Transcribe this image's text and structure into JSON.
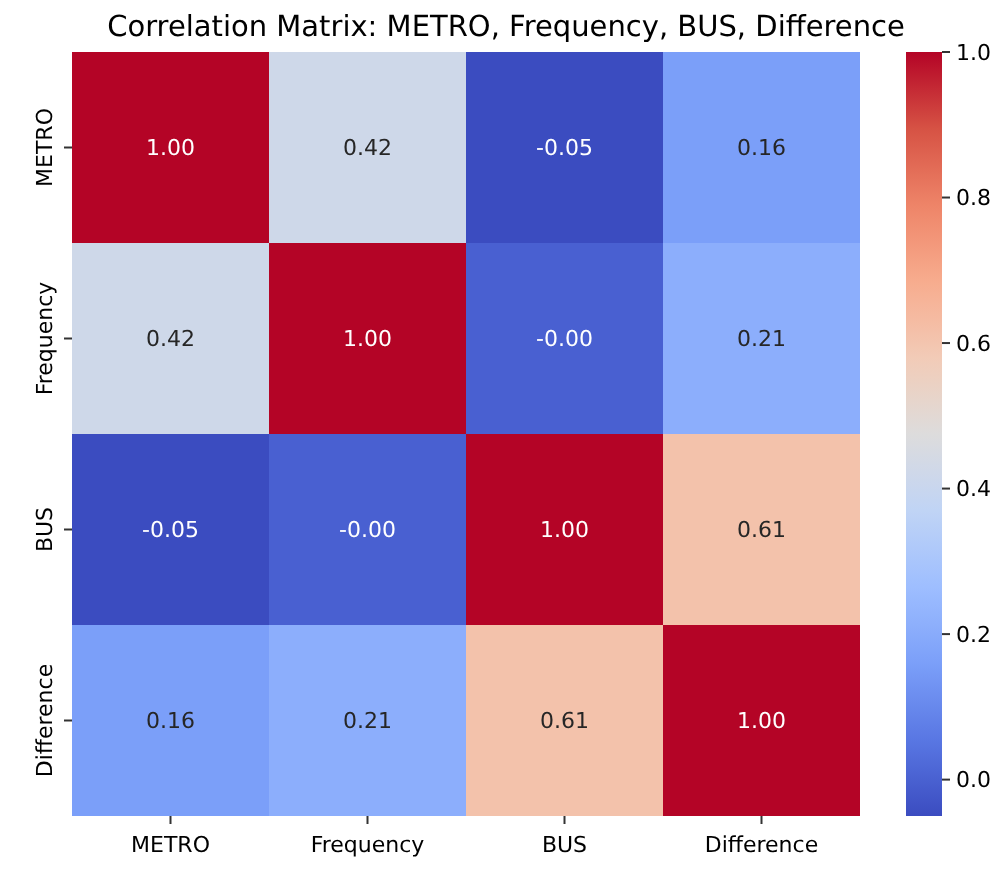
{
  "chart_data": {
    "type": "heatmap",
    "title": "Correlation Matrix: METRO, Frequency, BUS, Difference",
    "categories": [
      "METRO",
      "Frequency",
      "BUS",
      "Difference"
    ],
    "y_categories": [
      "METRO",
      "Frequency",
      "BUS",
      "Difference"
    ],
    "cells": [
      [
        1.0,
        0.42,
        -0.05,
        0.16
      ],
      [
        0.42,
        1.0,
        -0.0,
        0.21
      ],
      [
        -0.05,
        -0.0,
        1.0,
        0.61
      ],
      [
        0.16,
        0.21,
        0.61,
        1.0
      ]
    ],
    "cell_labels": [
      [
        "1.00",
        "0.42",
        "-0.05",
        "0.16"
      ],
      [
        "0.42",
        "1.00",
        "-0.00",
        "0.21"
      ],
      [
        "-0.05",
        "-0.00",
        "1.00",
        "0.61"
      ],
      [
        "0.16",
        "0.21",
        "0.61",
        "1.00"
      ]
    ],
    "clim": [
      -0.05,
      1.0
    ],
    "cticks": [
      {
        "value": 0.0,
        "label": "0.0"
      },
      {
        "value": 0.2,
        "label": "0.2"
      },
      {
        "value": 0.4,
        "label": "0.4"
      },
      {
        "value": 0.6,
        "label": "0.6"
      },
      {
        "value": 0.8,
        "label": "0.8"
      },
      {
        "value": 1.0,
        "label": "1.0"
      }
    ]
  }
}
